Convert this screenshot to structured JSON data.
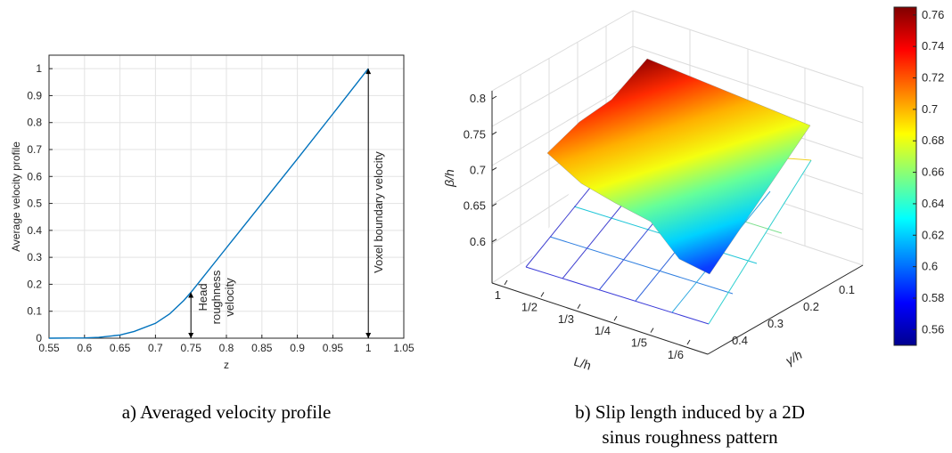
{
  "captions": {
    "a": "a) Averaged velocity profile",
    "b_line1": "b) Slip length induced by a 2D",
    "b_line2": "sinus roughness pattern"
  },
  "colors": {
    "line": "#0072BD",
    "axis": "#262626",
    "grid": "#e3e3e3",
    "annotation": "#000000"
  },
  "chart_data": [
    {
      "type": "line",
      "xlabel": "z",
      "ylabel": "Average velocity profile",
      "xlim": [
        0.55,
        1.05
      ],
      "ylim": [
        0,
        1.05
      ],
      "xticks": [
        "0.55",
        "0.6",
        "0.65",
        "0.7",
        "0.75",
        "0.8",
        "0.85",
        "0.9",
        "0.95",
        "1",
        "1.05"
      ],
      "yticks": [
        "0",
        "0.1",
        "0.2",
        "0.3",
        "0.4",
        "0.5",
        "0.6",
        "0.7",
        "0.8",
        "0.9",
        "1"
      ],
      "grid": true,
      "series": [
        {
          "x": [
            0.55,
            0.6,
            0.62,
            0.65,
            0.67,
            0.7,
            0.72,
            0.74,
            0.75,
            0.8,
            0.85,
            0.9,
            0.95,
            1.0
          ],
          "y": [
            0.0,
            0.001,
            0.003,
            0.012,
            0.025,
            0.055,
            0.09,
            0.14,
            0.17,
            0.335,
            0.5,
            0.665,
            0.832,
            1.0
          ]
        }
      ],
      "annotations": [
        {
          "text_lines": [
            "Head",
            "roughness",
            "velocity"
          ],
          "x": 0.75,
          "y_from": 0.0,
          "y_to": 0.17
        },
        {
          "text_lines": [
            "Voxel boundary velocity"
          ],
          "x": 1.0,
          "y_from": 0.0,
          "y_to": 1.0
        }
      ]
    },
    {
      "type": "surface",
      "xlabel": "L/h",
      "ylabel": "γ/h",
      "zlabel": "β/h",
      "x_ticks": [
        "1",
        "1/2",
        "1/3",
        "1/4",
        "1/5",
        "1/6"
      ],
      "y_ticks": [
        "0.1",
        "0.2",
        "0.3",
        "0.4"
      ],
      "z_ticks": [
        "0.6",
        "0.65",
        "0.7",
        "0.75",
        "0.8"
      ],
      "zlim": [
        0.55,
        0.8
      ],
      "colormap": "jet",
      "colorbar": {
        "ticks": [
          "0.56",
          "0.58",
          "0.6",
          "0.62",
          "0.64",
          "0.66",
          "0.68",
          "0.7",
          "0.72",
          "0.74",
          "0.76"
        ],
        "range": [
          0.55,
          0.765
        ]
      },
      "corners": {
        "L1_gamma_high": 0.7,
        "L1_gamma_low": 0.765,
        "L6_gamma_high": 0.555,
        "L6_gamma_low": 0.69
      }
    }
  ]
}
